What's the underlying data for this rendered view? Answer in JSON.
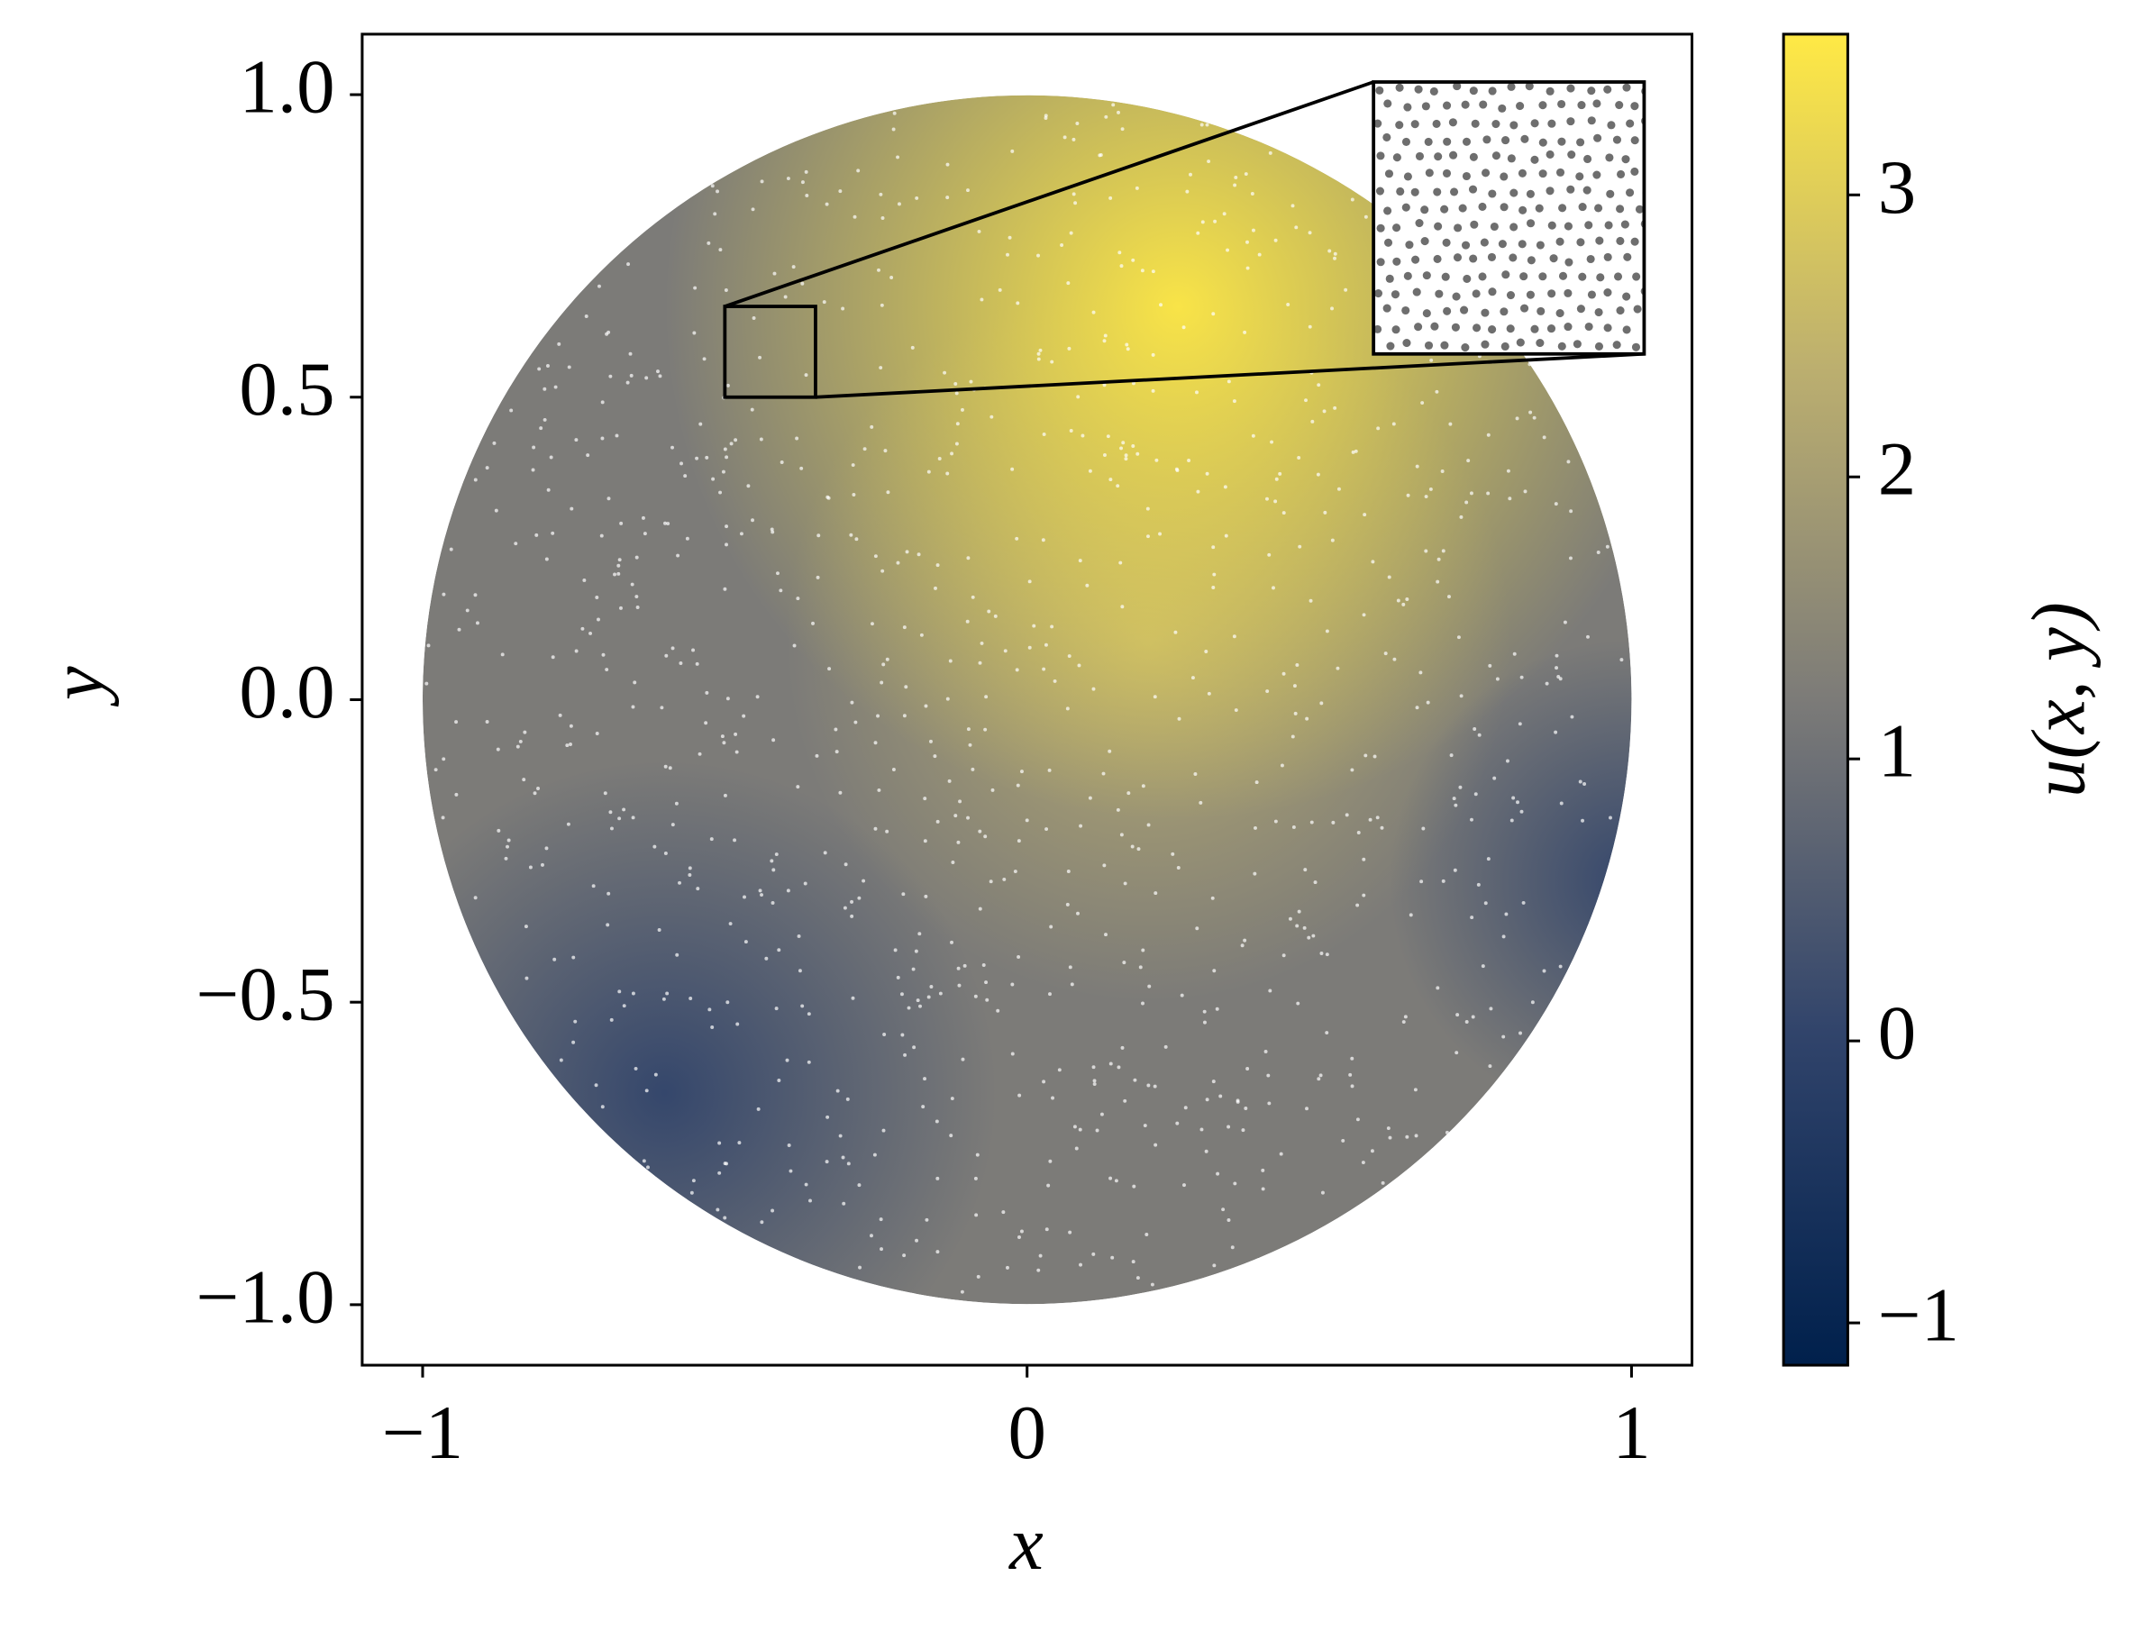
{
  "chart_data": {
    "type": "field",
    "x_label": "x",
    "y_label": "y",
    "colorbar_label": "u(x, y)",
    "xlim": [
      -1.1,
      1.1
    ],
    "ylim": [
      -1.1,
      1.1
    ],
    "xticks": [
      {
        "value": -1,
        "label": "−1"
      },
      0,
      1
    ],
    "yticks": [
      {
        "value": -1,
        "label": "−1.0"
      },
      {
        "value": -0.5,
        "label": "−0.5"
      },
      {
        "value": 0,
        "label": "0.0"
      },
      0.5,
      {
        "value": 1,
        "label": "1.0"
      }
    ],
    "domain": {
      "center": [
        0,
        0
      ],
      "radius": 1
    },
    "colormap": [
      "#00204c",
      "#31446b",
      "#7c7b78",
      "#bcaf6f",
      "#ffe945"
    ],
    "clim": [
      -1.15,
      3.57
    ],
    "cticks": [
      {
        "value": -1,
        "label": "−1"
      },
      0,
      1,
      2,
      3
    ],
    "inset": {
      "xlim": [
        -0.5,
        -0.35
      ],
      "ylim": [
        0.5,
        0.65
      ]
    }
  }
}
